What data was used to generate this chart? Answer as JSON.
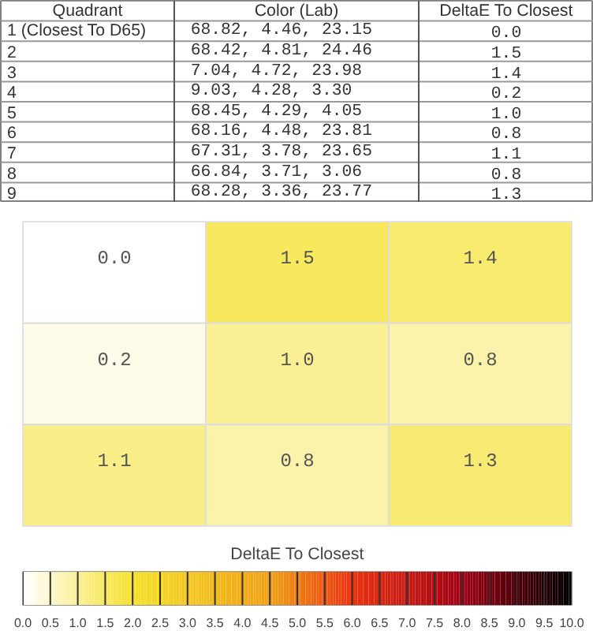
{
  "chart_data": {
    "type": "heatmap",
    "categories": [
      null,
      null,
      null
    ],
    "y_categories": [
      null,
      null,
      null
    ],
    "cells": [
      [
        0.0,
        1.5,
        1.4
      ],
      [
        0.2,
        1.0,
        0.8
      ],
      [
        1.1,
        0.8,
        1.3
      ]
    ],
    "cell_labels": [
      [
        "0.0",
        "1.5",
        "1.4"
      ],
      [
        "0.2",
        "1.0",
        "0.8"
      ],
      [
        "1.1",
        "0.8",
        "1.3"
      ]
    ],
    "clabel": "DeltaE To Closest",
    "clim": [
      0,
      10
    ],
    "cticks": [
      {
        "value": 0,
        "label": "0.0"
      },
      {
        "value": 0.5,
        "label": "0.5"
      },
      {
        "value": 1,
        "label": "1.0"
      },
      {
        "value": 1.5,
        "label": "1.5"
      },
      {
        "value": 2,
        "label": "2.0"
      },
      {
        "value": 2.5,
        "label": "2.5"
      },
      {
        "value": 3,
        "label": "3.0"
      },
      {
        "value": 3.5,
        "label": "3.5"
      },
      {
        "value": 4,
        "label": "4.0"
      },
      {
        "value": 4.5,
        "label": "4.5"
      },
      {
        "value": 5,
        "label": "5.0"
      },
      {
        "value": 5.5,
        "label": "5.5"
      },
      {
        "value": 6,
        "label": "6.0"
      },
      {
        "value": 6.5,
        "label": "6.5"
      },
      {
        "value": 7,
        "label": "7.0"
      },
      {
        "value": 7.5,
        "label": "7.5"
      },
      {
        "value": 8,
        "label": "8.0"
      },
      {
        "value": 8.5,
        "label": "8.5"
      },
      {
        "value": 9,
        "label": "9.0"
      },
      {
        "value": 9.5,
        "label": "9.5"
      },
      {
        "value": 10,
        "label": "10.0"
      }
    ],
    "annotations": [
      "Quadrant",
      "Color (Lab)",
      "DeltaE To Closest",
      "1 (Closest To D65)",
      "68.82,   4.46,  23.15",
      "0.0",
      "2",
      "68.42,   4.81,  24.46",
      "1.5",
      "3",
      " 7.04,   4.72,  23.98",
      "1.4",
      "4",
      " 9.03,   4.28,   3.30",
      "0.2",
      "5",
      "68.45,   4.29,   4.05",
      "1.0",
      "6",
      "68.16,   4.48,  23.81",
      "0.8",
      "7",
      "67.31,   3.78,  23.65",
      "1.1",
      "8",
      "66.84,   3.71,   3.06",
      "0.8",
      "9",
      "68.28,   3.36,  23.77",
      "1.3"
    ]
  }
}
